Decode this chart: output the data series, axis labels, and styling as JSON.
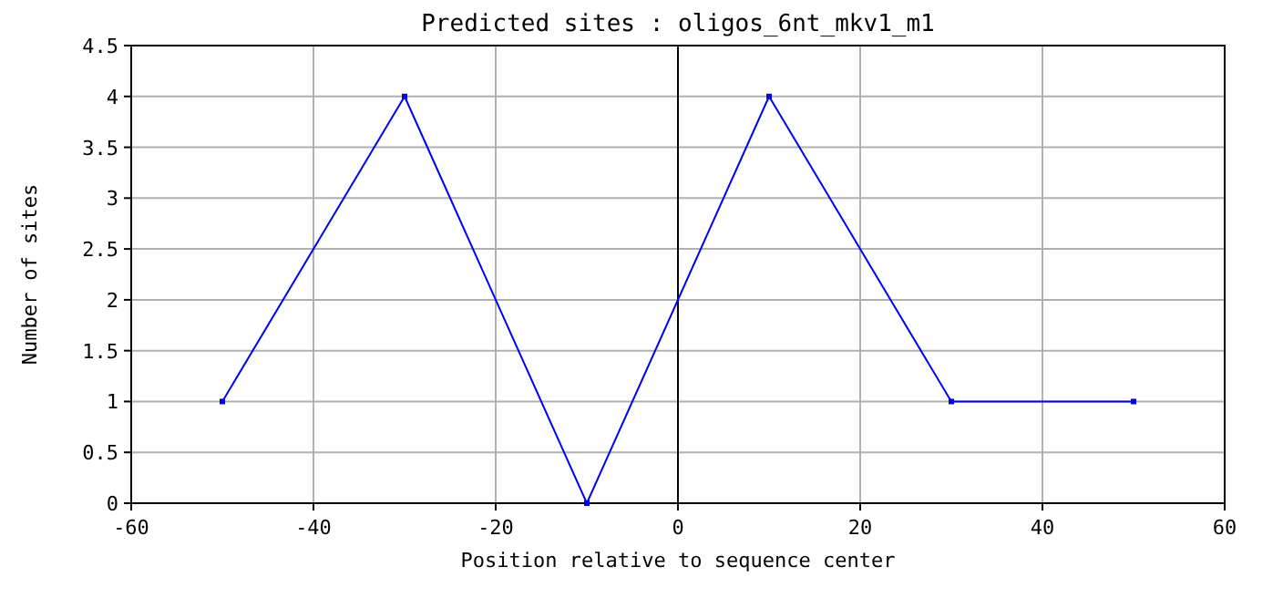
{
  "chart_data": {
    "type": "line",
    "title": "Predicted sites : oligos_6nt_mkv1_m1",
    "xlabel": "Position relative to sequence center",
    "ylabel": "Number of sites",
    "x": [
      -50,
      -30,
      -10,
      10,
      30,
      50
    ],
    "series": [
      {
        "color": "#0000ff",
        "values": [
          1,
          4,
          0,
          4,
          1,
          1
        ]
      }
    ],
    "xlim": [
      -60,
      60
    ],
    "xticks": [
      -60,
      -40,
      -20,
      0,
      20,
      40,
      60
    ],
    "ylim": [
      0,
      4.5
    ],
    "yticks": [
      0,
      0.5,
      1,
      1.5,
      2,
      2.5,
      3,
      3.5,
      4,
      4.5
    ],
    "grid": true,
    "marker": "square",
    "ref_lines": [
      {
        "axis": "x",
        "value": 0,
        "color": "#000000"
      }
    ]
  }
}
